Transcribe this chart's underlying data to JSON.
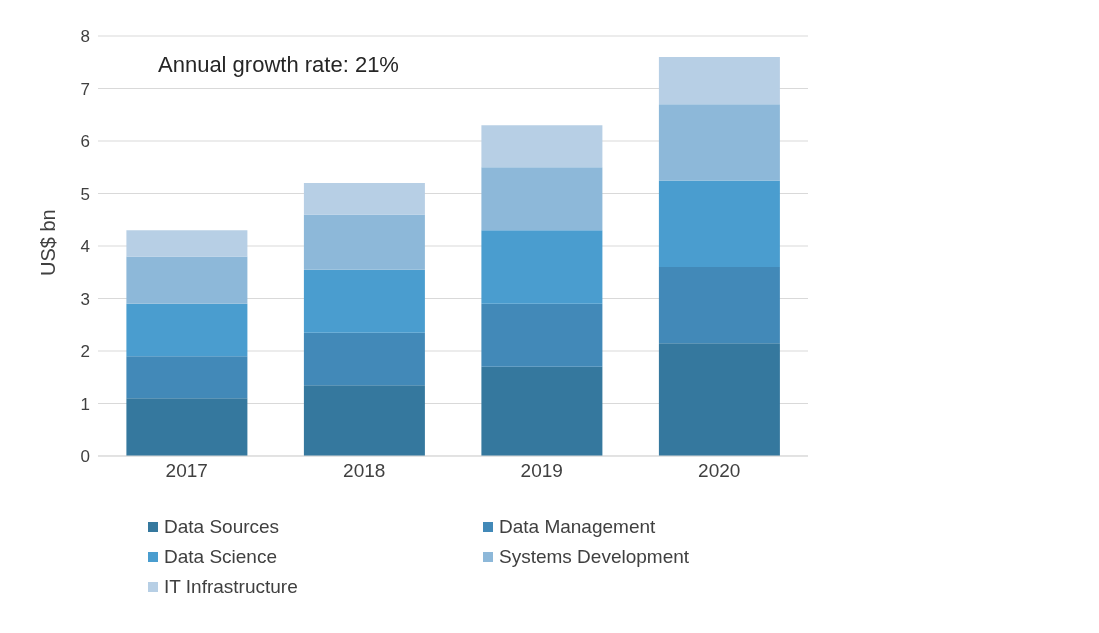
{
  "chart_data": {
    "type": "bar",
    "stacked": true,
    "ylabel": "US$ bn",
    "annotations": [
      "Annual growth rate: 21%"
    ],
    "categories": [
      "2017",
      "2018",
      "2019",
      "2020"
    ],
    "series": [
      {
        "name": "Data Sources",
        "color": "#35789e",
        "values": [
          1.1,
          1.35,
          1.7,
          2.15
        ]
      },
      {
        "name": "Data Management",
        "color": "#4289b8",
        "values": [
          0.8,
          1.0,
          1.2,
          1.45
        ]
      },
      {
        "name": "Data Science",
        "color": "#4a9dcf",
        "values": [
          1.0,
          1.2,
          1.4,
          1.65
        ]
      },
      {
        "name": "Systems Development",
        "color": "#8db8d9",
        "values": [
          0.9,
          1.05,
          1.2,
          1.45
        ]
      },
      {
        "name": "IT Infrastructure",
        "color": "#b7cfe5",
        "values": [
          0.5,
          0.6,
          0.8,
          0.9
        ]
      }
    ],
    "ylim": [
      0,
      8
    ],
    "yticks": [
      0,
      1,
      2,
      3,
      4,
      5,
      6,
      7,
      8
    ],
    "grid": "y",
    "legend": "bottom"
  }
}
